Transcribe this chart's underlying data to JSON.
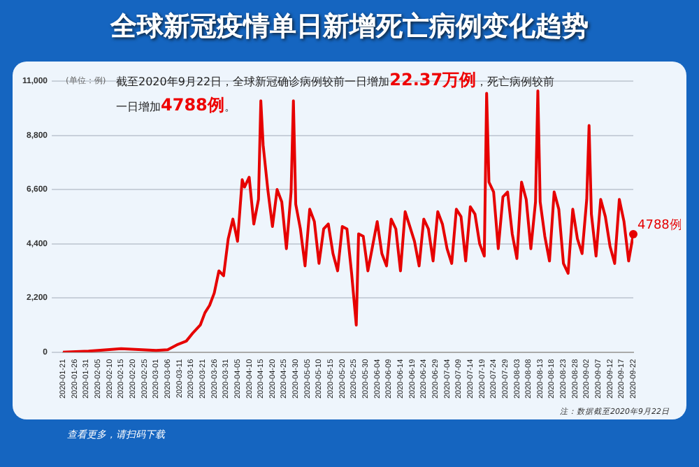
{
  "chart_data": {
    "type": "line",
    "title": "全球新冠疫情单日新增死亡病例变化趋势",
    "subtitle": "截至2020年9月22日，全球新冠确诊病例较前一日增加22.37万例，死亡病例较前一日增加4788例。",
    "ylabel": "(单位：例)",
    "annotations": [
      {
        "text": "4788例",
        "x": "2020-09-22",
        "y": 4788
      },
      "注：数据截至2020年9月22日",
      "查看更多，请扫码下载"
    ],
    "series": [
      {
        "color": "#e60000",
        "x": [
          "2020-01-21",
          "2020-02-01",
          "2020-02-15",
          "2020-03-01",
          "2020-03-06",
          "2020-03-10",
          "2020-03-14",
          "2020-03-17",
          "2020-03-20",
          "2020-03-22",
          "2020-03-24",
          "2020-03-26",
          "2020-03-28",
          "2020-03-30",
          "2020-04-01",
          "2020-04-03",
          "2020-04-05",
          "2020-04-07",
          "2020-04-08",
          "2020-04-10",
          "2020-04-12",
          "2020-04-14",
          "2020-04-15",
          "2020-04-16",
          "2020-04-18",
          "2020-04-20",
          "2020-04-22",
          "2020-04-24",
          "2020-04-26",
          "2020-04-28",
          "2020-04-29",
          "2020-04-30",
          "2020-05-02",
          "2020-05-04",
          "2020-05-06",
          "2020-05-08",
          "2020-05-10",
          "2020-05-12",
          "2020-05-14",
          "2020-05-16",
          "2020-05-18",
          "2020-05-20",
          "2020-05-22",
          "2020-05-24",
          "2020-05-26",
          "2020-05-27",
          "2020-05-29",
          "2020-05-31",
          "2020-06-02",
          "2020-06-04",
          "2020-06-06",
          "2020-06-08",
          "2020-06-10",
          "2020-06-12",
          "2020-06-14",
          "2020-06-16",
          "2020-06-18",
          "2020-06-20",
          "2020-06-22",
          "2020-06-24",
          "2020-06-26",
          "2020-06-28",
          "2020-06-30",
          "2020-07-02",
          "2020-07-04",
          "2020-07-06",
          "2020-07-08",
          "2020-07-10",
          "2020-07-12",
          "2020-07-14",
          "2020-07-16",
          "2020-07-18",
          "2020-07-20",
          "2020-07-21",
          "2020-07-22",
          "2020-07-24",
          "2020-07-26",
          "2020-07-28",
          "2020-07-30",
          "2020-08-01",
          "2020-08-03",
          "2020-08-05",
          "2020-08-07",
          "2020-08-09",
          "2020-08-11",
          "2020-08-12",
          "2020-08-13",
          "2020-08-15",
          "2020-08-17",
          "2020-08-19",
          "2020-08-21",
          "2020-08-23",
          "2020-08-25",
          "2020-08-27",
          "2020-08-29",
          "2020-08-31",
          "2020-09-02",
          "2020-09-03",
          "2020-09-04",
          "2020-09-06",
          "2020-09-08",
          "2020-09-10",
          "2020-09-12",
          "2020-09-14",
          "2020-09-16",
          "2020-09-18",
          "2020-09-20",
          "2020-09-22"
        ],
        "values": [
          0,
          40,
          140,
          70,
          100,
          300,
          450,
          800,
          1100,
          1600,
          1900,
          2400,
          3300,
          3100,
          4600,
          5400,
          4500,
          7000,
          6700,
          7100,
          5200,
          6200,
          10200,
          8400,
          6600,
          5100,
          6600,
          6100,
          4200,
          6500,
          10200,
          6000,
          5000,
          3500,
          5800,
          5300,
          3600,
          5000,
          5200,
          4000,
          3300,
          5100,
          5000,
          3200,
          1100,
          4800,
          4700,
          3300,
          4300,
          5300,
          4000,
          3500,
          5400,
          5000,
          3300,
          5700,
          5100,
          4500,
          3500,
          5400,
          5000,
          3700,
          5700,
          5200,
          4200,
          3600,
          5800,
          5500,
          3700,
          5900,
          5600,
          4400,
          3900,
          10500,
          6900,
          6500,
          4200,
          6300,
          6500,
          4800,
          3800,
          6900,
          6200,
          4200,
          6100,
          10600,
          6100,
          4700,
          3700,
          6500,
          5800,
          3600,
          3200,
          5800,
          4600,
          4000,
          6200,
          9200,
          5600,
          3900,
          6200,
          5500,
          4300,
          3600,
          6200,
          5300,
          3700,
          4788
        ]
      }
    ],
    "xlim": [
      "2020-01-21",
      "2020-09-22"
    ],
    "xticks": [
      "2020-01-21",
      "2020-01-26",
      "2020-01-31",
      "2020-02-05",
      "2020-02-10",
      "2020-02-15",
      "2020-02-20",
      "2020-02-25",
      "2020-03-01",
      "2020-03-06",
      "2020-03-11",
      "2020-03-16",
      "2020-03-21",
      "2020-03-26",
      "2020-03-31",
      "2020-04-05",
      "2020-04-10",
      "2020-04-15",
      "2020-04-20",
      "2020-04-25",
      "2020-04-30",
      "2020-05-05",
      "2020-05-10",
      "2020-05-15",
      "2020-05-20",
      "2020-05-25",
      "2020-05-30",
      "2020-06-04",
      "2020-06-09",
      "2020-06-14",
      "2020-06-19",
      "2020-06-24",
      "2020-06-29",
      "2020-07-04",
      "2020-07-09",
      "2020-07-14",
      "2020-07-19",
      "2020-07-24",
      "2020-07-29",
      "2020-08-03",
      "2020-08-08",
      "2020-08-13",
      "2020-08-18",
      "2020-08-23",
      "2020-08-28",
      "2020-09-02",
      "2020-09-07",
      "2020-09-12",
      "2020-09-17",
      "2020-09-22"
    ],
    "ylim": [
      0,
      11000
    ],
    "yticks": [
      0,
      {
        "value": 2200,
        "label": "2,200"
      },
      {
        "value": 4400,
        "label": "4,400"
      },
      {
        "value": 6600,
        "label": "6,600"
      },
      {
        "value": 8800,
        "label": "8,800"
      },
      {
        "value": 11000,
        "label": "11,000"
      }
    ],
    "grid": "y",
    "legend": false,
    "marker": "none",
    "line_style": "solid"
  }
}
